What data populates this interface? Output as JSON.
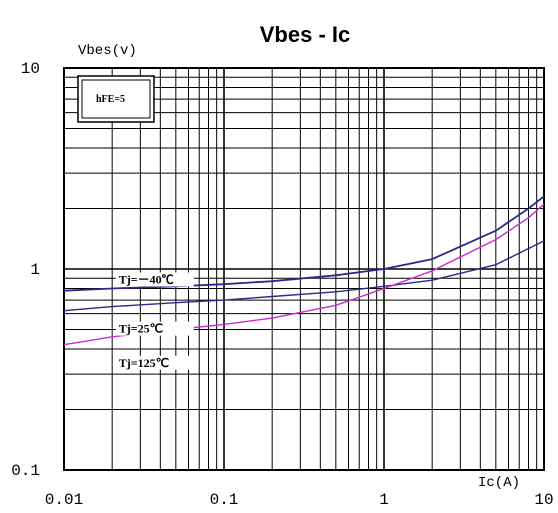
{
  "chart_data": {
    "type": "line",
    "title": "Vbes - Ic",
    "ylabel": "Vbes(v)",
    "xlabel": "Ic(A)",
    "x_scale": "log",
    "y_scale": "log",
    "xlim": [
      0.01,
      10
    ],
    "ylim": [
      0.1,
      10
    ],
    "grid": true,
    "x_ticks": [
      "0.01",
      "0.1",
      "1",
      "10"
    ],
    "y_ticks": [
      "0.1",
      "1",
      "10"
    ],
    "box_label": "hFE=5",
    "series": [
      {
        "name": "Tj=－40℃",
        "color": "#2a2a8c",
        "x": [
          0.01,
          0.02,
          0.05,
          0.1,
          0.2,
          0.5,
          1,
          2,
          5,
          8,
          10
        ],
        "y": [
          0.78,
          0.8,
          0.82,
          0.84,
          0.87,
          0.93,
          1.0,
          1.12,
          1.55,
          2.0,
          2.3
        ]
      },
      {
        "name": "Tj=25℃",
        "color": "#2a2a8c",
        "x": [
          0.01,
          0.02,
          0.05,
          0.1,
          0.2,
          0.5,
          1,
          2,
          5,
          10
        ],
        "y": [
          0.62,
          0.65,
          0.68,
          0.7,
          0.73,
          0.77,
          0.82,
          0.88,
          1.05,
          1.38
        ]
      },
      {
        "name": "Tj=125℃",
        "color": "#cc2ccc",
        "x": [
          0.01,
          0.02,
          0.05,
          0.1,
          0.2,
          0.5,
          1,
          2,
          5,
          8,
          10
        ],
        "y": [
          0.42,
          0.46,
          0.5,
          0.53,
          0.57,
          0.66,
          0.8,
          0.98,
          1.4,
          1.8,
          2.1
        ]
      }
    ]
  }
}
